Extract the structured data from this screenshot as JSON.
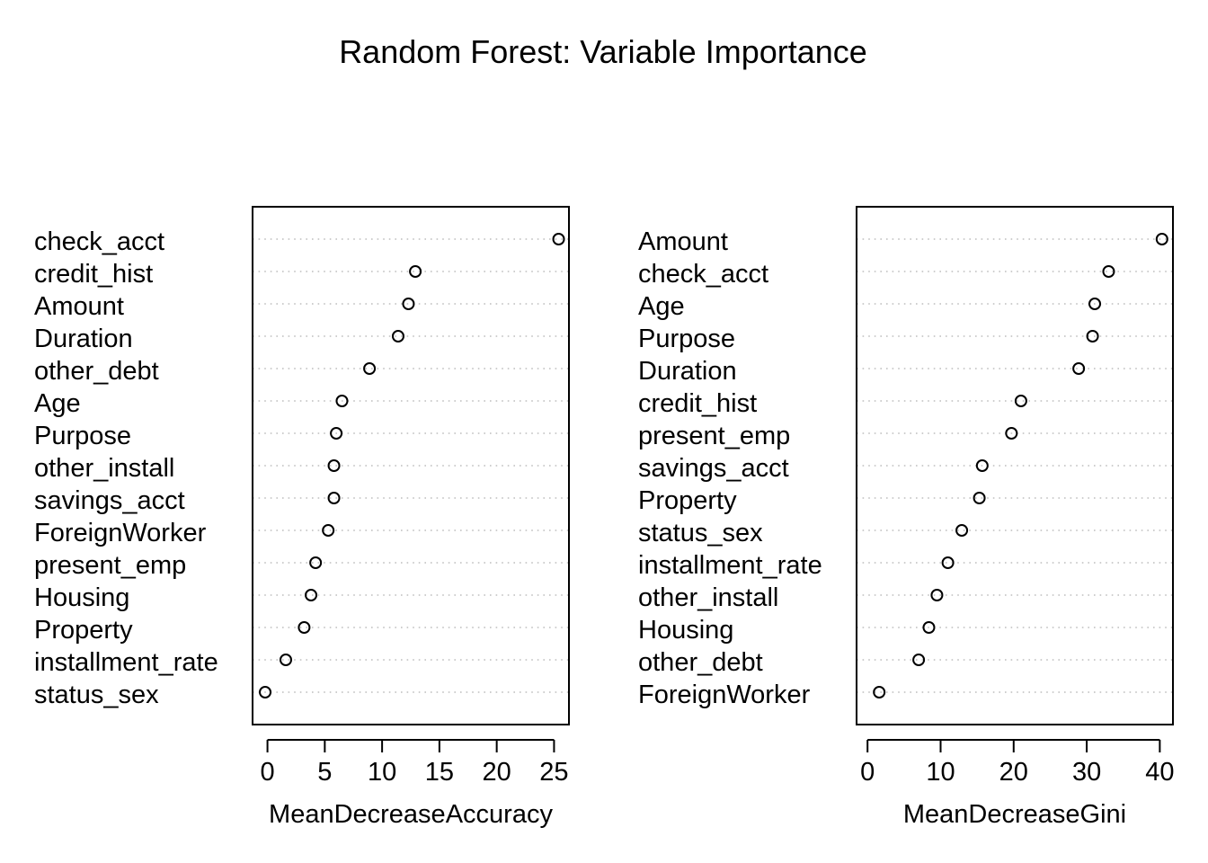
{
  "title": "Random Forest: Variable Importance",
  "chart_data": [
    {
      "type": "scatter",
      "xlabel": "MeanDecreaseAccuracy",
      "xlim": [
        -1.3,
        26.3
      ],
      "xticks": [
        "0",
        "5",
        "10",
        "15",
        "20",
        "25"
      ],
      "grid": "dotted horizontal guide lines",
      "categories": [
        "check_acct",
        "credit_hist",
        "Amount",
        "Duration",
        "other_debt",
        "Age",
        "Purpose",
        "other_install",
        "savings_acct",
        "ForeignWorker",
        "present_emp",
        "Housing",
        "Property",
        "installment_rate",
        "status_sex"
      ],
      "values": [
        25.4,
        12.9,
        12.3,
        11.4,
        8.9,
        6.5,
        6.0,
        5.8,
        5.8,
        5.3,
        4.2,
        3.8,
        3.2,
        1.6,
        -0.2
      ]
    },
    {
      "type": "scatter",
      "xlabel": "MeanDecreaseGini",
      "xlim": [
        -1.5,
        41.8
      ],
      "xticks": [
        "0",
        "10",
        "20",
        "30",
        "40"
      ],
      "grid": "dotted horizontal guide lines",
      "categories": [
        "Amount",
        "check_acct",
        "Age",
        "Purpose",
        "Duration",
        "credit_hist",
        "present_emp",
        "savings_acct",
        "Property",
        "status_sex",
        "installment_rate",
        "other_install",
        "Housing",
        "other_debt",
        "ForeignWorker"
      ],
      "values": [
        40.3,
        33.0,
        31.1,
        30.8,
        28.9,
        21.0,
        19.7,
        15.7,
        15.3,
        12.9,
        11.0,
        9.5,
        8.4,
        7.0,
        1.6
      ]
    }
  ]
}
